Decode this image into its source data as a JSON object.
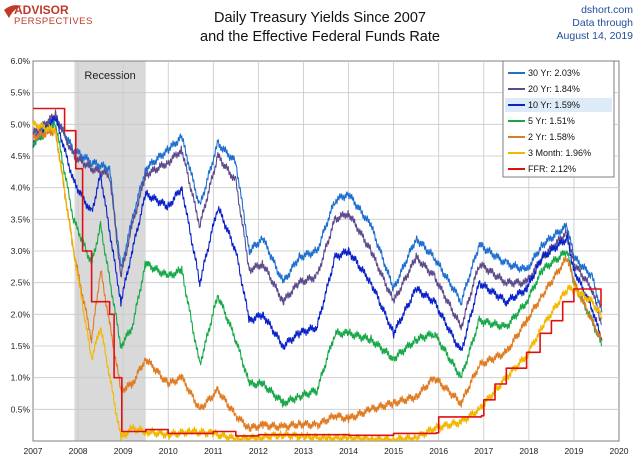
{
  "logo": {
    "name": "ADVISOR",
    "tagline": "PERSPECTIVES",
    "color": "#c0392b"
  },
  "title_lines": [
    "Daily Treasury Yields Since 2007",
    "and the Effective Federal Funds Rate"
  ],
  "source": {
    "site": "dshort.com",
    "note": "Data through",
    "date": "August 14, 2019",
    "color": "#1f4e9c"
  },
  "chart_data": {
    "type": "line",
    "x_ticks": [
      "2007",
      "2008",
      "2009",
      "2010",
      "2011",
      "2012",
      "2013",
      "2014",
      "2015",
      "2016",
      "2017",
      "2018",
      "2019",
      "2020"
    ],
    "y_ticks": [
      "6.0%",
      "5.5%",
      "5.0%",
      "4.5%",
      "4.0%",
      "3.5%",
      "3.0%",
      "2.5%",
      "2.0%",
      "1.5%",
      "1.0%",
      "0.5%"
    ],
    "xlim": [
      2007,
      2020
    ],
    "ylim": [
      0,
      6
    ],
    "grid": true,
    "legend_position": "top-right",
    "highlighted_series": "10 Yr",
    "recession": {
      "label": "Recession",
      "start": 2007.92,
      "end": 2009.5,
      "color": "#d9d9d9"
    },
    "series": [
      {
        "name": "30 Yr",
        "latest": "2.03%",
        "color": "#1f6fd0",
        "points": [
          [
            2007.0,
            4.8
          ],
          [
            2007.5,
            5.1
          ],
          [
            2007.9,
            4.6
          ],
          [
            2008.3,
            4.4
          ],
          [
            2008.7,
            4.3
          ],
          [
            2008.95,
            2.7
          ],
          [
            2009.2,
            3.5
          ],
          [
            2009.5,
            4.3
          ],
          [
            2010.0,
            4.6
          ],
          [
            2010.3,
            4.8
          ],
          [
            2010.7,
            3.7
          ],
          [
            2011.1,
            4.7
          ],
          [
            2011.5,
            4.4
          ],
          [
            2011.8,
            3.0
          ],
          [
            2012.1,
            3.2
          ],
          [
            2012.55,
            2.5
          ],
          [
            2012.9,
            2.9
          ],
          [
            2013.3,
            3.0
          ],
          [
            2013.7,
            3.8
          ],
          [
            2014.0,
            3.9
          ],
          [
            2014.5,
            3.4
          ],
          [
            2015.0,
            2.4
          ],
          [
            2015.5,
            3.2
          ],
          [
            2015.9,
            2.9
          ],
          [
            2016.5,
            2.2
          ],
          [
            2016.9,
            3.1
          ],
          [
            2017.5,
            2.8
          ],
          [
            2017.95,
            2.7
          ],
          [
            2018.3,
            3.1
          ],
          [
            2018.85,
            3.4
          ],
          [
            2019.0,
            2.9
          ],
          [
            2019.4,
            2.6
          ],
          [
            2019.62,
            2.03
          ]
        ]
      },
      {
        "name": "20 Yr",
        "latest": "1.84%",
        "color": "#5e4b8b",
        "points": [
          [
            2007.0,
            4.85
          ],
          [
            2007.5,
            5.15
          ],
          [
            2007.9,
            4.5
          ],
          [
            2008.3,
            4.3
          ],
          [
            2008.7,
            4.2
          ],
          [
            2008.95,
            2.6
          ],
          [
            2009.2,
            3.4
          ],
          [
            2009.5,
            4.2
          ],
          [
            2010.0,
            4.4
          ],
          [
            2010.3,
            4.6
          ],
          [
            2010.7,
            3.4
          ],
          [
            2011.1,
            4.5
          ],
          [
            2011.5,
            4.1
          ],
          [
            2011.8,
            2.7
          ],
          [
            2012.1,
            2.8
          ],
          [
            2012.55,
            2.2
          ],
          [
            2012.9,
            2.5
          ],
          [
            2013.3,
            2.6
          ],
          [
            2013.7,
            3.5
          ],
          [
            2014.0,
            3.6
          ],
          [
            2014.5,
            3.0
          ],
          [
            2015.0,
            2.2
          ],
          [
            2015.5,
            2.9
          ],
          [
            2015.9,
            2.6
          ],
          [
            2016.5,
            1.8
          ],
          [
            2016.9,
            2.8
          ],
          [
            2017.5,
            2.5
          ],
          [
            2017.95,
            2.5
          ],
          [
            2018.3,
            2.9
          ],
          [
            2018.85,
            3.3
          ],
          [
            2019.0,
            2.8
          ],
          [
            2019.4,
            2.4
          ],
          [
            2019.62,
            1.84
          ]
        ]
      },
      {
        "name": "10 Yr",
        "latest": "1.59%",
        "color": "#0a22c9",
        "points": [
          [
            2007.0,
            4.7
          ],
          [
            2007.5,
            5.1
          ],
          [
            2007.9,
            4.1
          ],
          [
            2008.3,
            3.6
          ],
          [
            2008.5,
            4.2
          ],
          [
            2008.95,
            2.2
          ],
          [
            2009.2,
            3.0
          ],
          [
            2009.5,
            3.9
          ],
          [
            2010.0,
            3.7
          ],
          [
            2010.3,
            4.0
          ],
          [
            2010.7,
            2.5
          ],
          [
            2011.1,
            3.7
          ],
          [
            2011.5,
            3.0
          ],
          [
            2011.8,
            1.9
          ],
          [
            2012.1,
            2.0
          ],
          [
            2012.55,
            1.5
          ],
          [
            2012.9,
            1.7
          ],
          [
            2013.3,
            1.8
          ],
          [
            2013.7,
            2.9
          ],
          [
            2014.0,
            3.0
          ],
          [
            2014.5,
            2.5
          ],
          [
            2015.0,
            1.7
          ],
          [
            2015.5,
            2.4
          ],
          [
            2015.9,
            2.2
          ],
          [
            2016.5,
            1.4
          ],
          [
            2016.9,
            2.5
          ],
          [
            2017.5,
            2.2
          ],
          [
            2017.95,
            2.4
          ],
          [
            2018.3,
            2.9
          ],
          [
            2018.85,
            3.2
          ],
          [
            2019.0,
            2.7
          ],
          [
            2019.4,
            2.1
          ],
          [
            2019.62,
            1.59
          ]
        ]
      },
      {
        "name": "5 Yr",
        "latest": "1.51%",
        "color": "#17a848",
        "points": [
          [
            2007.0,
            4.7
          ],
          [
            2007.5,
            5.0
          ],
          [
            2007.9,
            3.5
          ],
          [
            2008.3,
            2.8
          ],
          [
            2008.5,
            3.4
          ],
          [
            2008.95,
            1.5
          ],
          [
            2009.2,
            1.8
          ],
          [
            2009.5,
            2.8
          ],
          [
            2010.0,
            2.6
          ],
          [
            2010.3,
            2.7
          ],
          [
            2010.7,
            1.2
          ],
          [
            2011.1,
            2.3
          ],
          [
            2011.5,
            1.6
          ],
          [
            2011.8,
            0.9
          ],
          [
            2012.1,
            0.9
          ],
          [
            2012.55,
            0.6
          ],
          [
            2012.9,
            0.7
          ],
          [
            2013.3,
            0.8
          ],
          [
            2013.7,
            1.7
          ],
          [
            2014.0,
            1.7
          ],
          [
            2014.5,
            1.6
          ],
          [
            2015.0,
            1.3
          ],
          [
            2015.5,
            1.6
          ],
          [
            2015.9,
            1.7
          ],
          [
            2016.5,
            1.0
          ],
          [
            2016.9,
            1.9
          ],
          [
            2017.5,
            1.8
          ],
          [
            2017.95,
            2.2
          ],
          [
            2018.3,
            2.7
          ],
          [
            2018.85,
            3.0
          ],
          [
            2019.0,
            2.5
          ],
          [
            2019.4,
            1.9
          ],
          [
            2019.62,
            1.51
          ]
        ]
      },
      {
        "name": "2 Yr",
        "latest": "1.58%",
        "color": "#e07b22",
        "points": [
          [
            2007.0,
            4.8
          ],
          [
            2007.5,
            4.9
          ],
          [
            2007.9,
            3.0
          ],
          [
            2008.3,
            1.6
          ],
          [
            2008.5,
            2.7
          ],
          [
            2008.95,
            0.8
          ],
          [
            2009.2,
            0.9
          ],
          [
            2009.5,
            1.3
          ],
          [
            2010.0,
            0.9
          ],
          [
            2010.3,
            1.0
          ],
          [
            2010.7,
            0.5
          ],
          [
            2011.1,
            0.8
          ],
          [
            2011.5,
            0.4
          ],
          [
            2011.8,
            0.2
          ],
          [
            2012.1,
            0.25
          ],
          [
            2012.55,
            0.22
          ],
          [
            2012.9,
            0.27
          ],
          [
            2013.3,
            0.25
          ],
          [
            2013.7,
            0.4
          ],
          [
            2014.0,
            0.35
          ],
          [
            2014.5,
            0.5
          ],
          [
            2015.0,
            0.6
          ],
          [
            2015.5,
            0.7
          ],
          [
            2015.9,
            1.0
          ],
          [
            2016.5,
            0.6
          ],
          [
            2016.9,
            1.2
          ],
          [
            2017.5,
            1.4
          ],
          [
            2017.95,
            1.9
          ],
          [
            2018.3,
            2.3
          ],
          [
            2018.85,
            2.9
          ],
          [
            2019.0,
            2.5
          ],
          [
            2019.4,
            1.9
          ],
          [
            2019.62,
            1.58
          ]
        ]
      },
      {
        "name": "3 Month",
        "latest": "1.96%",
        "color": "#f2b800",
        "points": [
          [
            2007.0,
            5.0
          ],
          [
            2007.5,
            4.9
          ],
          [
            2007.9,
            3.0
          ],
          [
            2008.3,
            1.3
          ],
          [
            2008.5,
            1.8
          ],
          [
            2008.95,
            0.05
          ],
          [
            2009.2,
            0.2
          ],
          [
            2009.5,
            0.15
          ],
          [
            2010.0,
            0.1
          ],
          [
            2010.5,
            0.15
          ],
          [
            2011.0,
            0.12
          ],
          [
            2011.5,
            0.03
          ],
          [
            2012.0,
            0.05
          ],
          [
            2012.5,
            0.1
          ],
          [
            2013.0,
            0.07
          ],
          [
            2013.5,
            0.04
          ],
          [
            2014.0,
            0.05
          ],
          [
            2014.5,
            0.03
          ],
          [
            2015.0,
            0.02
          ],
          [
            2015.5,
            0.05
          ],
          [
            2015.9,
            0.2
          ],
          [
            2016.5,
            0.3
          ],
          [
            2016.9,
            0.5
          ],
          [
            2017.5,
            1.0
          ],
          [
            2017.95,
            1.35
          ],
          [
            2018.3,
            1.8
          ],
          [
            2018.85,
            2.4
          ],
          [
            2019.0,
            2.4
          ],
          [
            2019.4,
            2.2
          ],
          [
            2019.62,
            1.96
          ]
        ]
      },
      {
        "name": "FFR",
        "latest": "2.12%",
        "color": "#e01010",
        "points": [
          [
            2007.0,
            5.25
          ],
          [
            2007.6,
            5.25
          ],
          [
            2007.7,
            4.9
          ],
          [
            2007.95,
            4.3
          ],
          [
            2008.1,
            3.0
          ],
          [
            2008.3,
            2.2
          ],
          [
            2008.7,
            2.0
          ],
          [
            2008.8,
            1.0
          ],
          [
            2008.97,
            0.15
          ],
          [
            2009.5,
            0.18
          ],
          [
            2010.0,
            0.12
          ],
          [
            2011.0,
            0.15
          ],
          [
            2011.5,
            0.08
          ],
          [
            2012.0,
            0.1
          ],
          [
            2013.0,
            0.1
          ],
          [
            2014.0,
            0.09
          ],
          [
            2015.0,
            0.12
          ],
          [
            2015.95,
            0.13
          ],
          [
            2016.0,
            0.38
          ],
          [
            2016.95,
            0.4
          ],
          [
            2017.0,
            0.65
          ],
          [
            2017.25,
            0.9
          ],
          [
            2017.5,
            1.15
          ],
          [
            2017.95,
            1.4
          ],
          [
            2018.25,
            1.7
          ],
          [
            2018.5,
            1.9
          ],
          [
            2018.75,
            2.2
          ],
          [
            2019.0,
            2.4
          ],
          [
            2019.55,
            2.4
          ],
          [
            2019.6,
            2.12
          ]
        ]
      }
    ]
  }
}
